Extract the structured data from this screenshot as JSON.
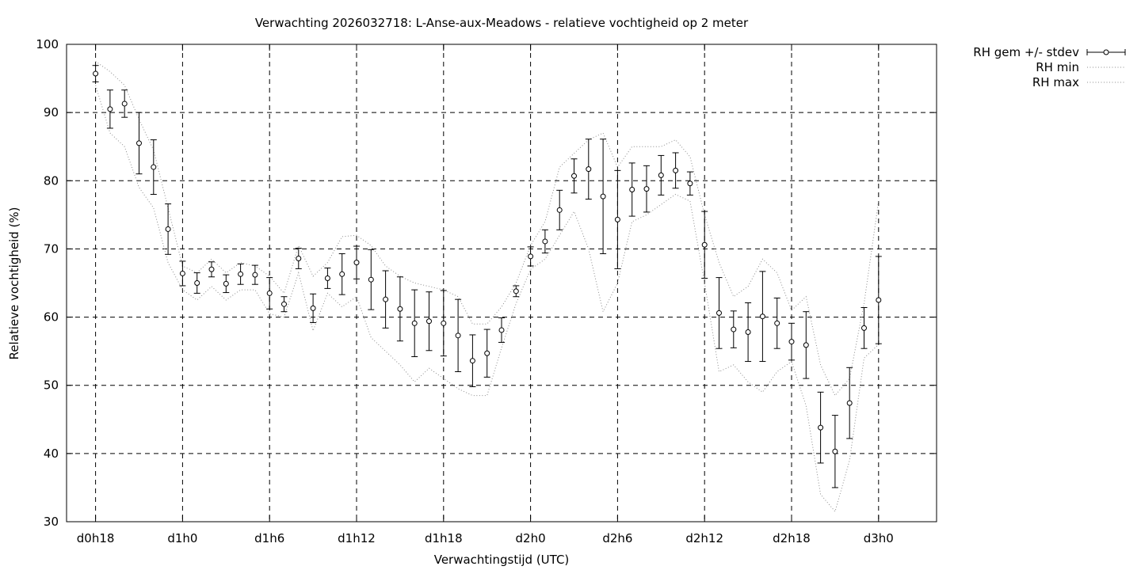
{
  "chart_data": {
    "type": "line",
    "title": "Verwachting 2026032718: L-Anse-aux-Meadows - relatieve vochtigheid op 2 meter",
    "xlabel": "Verwachtingstijd (UTC)",
    "ylabel": "Relatieve vochtigheid (%)",
    "x_unit": "forecast hours since d0h0",
    "xlim": [
      16,
      76
    ],
    "ylim": [
      30,
      100
    ],
    "x_ticks": [
      {
        "x": 18,
        "label": "d0h18"
      },
      {
        "x": 24,
        "label": "d1h0"
      },
      {
        "x": 30,
        "label": "d1h6"
      },
      {
        "x": 36,
        "label": "d1h12"
      },
      {
        "x": 42,
        "label": "d1h18"
      },
      {
        "x": 48,
        "label": "d2h0"
      },
      {
        "x": 54,
        "label": "d2h6"
      },
      {
        "x": 60,
        "label": "d2h12"
      },
      {
        "x": 66,
        "label": "d2h18"
      },
      {
        "x": 72,
        "label": "d3h0"
      }
    ],
    "y_ticks": [
      30,
      40,
      50,
      60,
      70,
      80,
      90,
      100
    ],
    "grid": true,
    "legend_position": "outside-top-right",
    "series": [
      {
        "name": "RH gem +/- stdev",
        "style": "points-errorbars",
        "x": [
          18,
          19,
          20,
          21,
          22,
          23,
          24,
          25,
          26,
          27,
          28,
          29,
          30,
          31,
          32,
          33,
          34,
          35,
          36,
          37,
          38,
          39,
          40,
          41,
          42,
          43,
          44,
          45,
          46,
          47,
          48,
          49,
          50,
          51,
          52,
          53,
          54,
          55,
          56,
          57,
          58,
          59,
          60,
          61,
          62,
          63,
          64,
          65,
          66,
          67,
          68,
          69,
          70,
          71,
          72
        ],
        "values": [
          95.7,
          90.5,
          91.3,
          85.5,
          82.0,
          72.9,
          66.4,
          65.0,
          67.0,
          64.9,
          66.3,
          66.2,
          63.5,
          61.9,
          68.6,
          61.3,
          65.7,
          66.3,
          68.0,
          65.5,
          62.6,
          61.2,
          59.1,
          59.4,
          59.1,
          57.3,
          53.6,
          54.7,
          58.1,
          63.8,
          68.9,
          71.1,
          75.7,
          80.7,
          81.7,
          77.7,
          74.3,
          78.7,
          78.8,
          80.8,
          81.5,
          79.6,
          70.6,
          60.6,
          58.2,
          57.8,
          60.1,
          59.1,
          56.4,
          55.9,
          43.8,
          40.3,
          47.4,
          58.4,
          62.5
        ],
        "lower": [
          94.5,
          87.7,
          89.3,
          81.0,
          78.0,
          69.2,
          64.6,
          63.5,
          65.9,
          63.6,
          64.8,
          64.8,
          61.2,
          60.8,
          67.1,
          59.2,
          64.2,
          63.3,
          65.6,
          61.1,
          58.4,
          56.5,
          54.2,
          55.1,
          54.3,
          52.0,
          49.8,
          51.2,
          56.3,
          63.0,
          67.5,
          69.4,
          72.8,
          78.2,
          77.3,
          69.3,
          67.1,
          74.8,
          75.4,
          77.9,
          78.9,
          77.9,
          65.7,
          55.4,
          55.5,
          53.5,
          53.5,
          55.4,
          53.7,
          51.0,
          38.6,
          35.0,
          42.2,
          55.4,
          56.1
        ],
        "upper": [
          96.9,
          93.3,
          93.3,
          90.0,
          86.0,
          76.6,
          68.2,
          66.5,
          68.1,
          66.2,
          67.8,
          67.6,
          65.8,
          63.0,
          70.1,
          63.4,
          67.2,
          69.3,
          70.4,
          69.9,
          66.8,
          65.9,
          64.0,
          63.7,
          63.9,
          62.6,
          57.4,
          58.2,
          59.9,
          64.6,
          70.3,
          72.8,
          78.6,
          83.2,
          86.1,
          86.1,
          81.5,
          82.6,
          82.2,
          83.7,
          84.1,
          81.3,
          75.5,
          65.8,
          60.9,
          62.1,
          66.7,
          62.8,
          59.1,
          60.8,
          49.0,
          45.6,
          52.6,
          61.4,
          68.9
        ]
      },
      {
        "name": "RH min",
        "style": "dotted",
        "x": [
          18,
          19,
          20,
          21,
          22,
          23,
          24,
          25,
          26,
          27,
          28,
          29,
          30,
          31,
          32,
          33,
          34,
          35,
          36,
          37,
          38,
          39,
          40,
          41,
          42,
          43,
          44,
          45,
          46,
          47,
          48,
          49,
          50,
          51,
          52,
          53,
          54,
          55,
          56,
          57,
          58,
          59,
          60,
          61,
          62,
          63,
          64,
          65,
          66,
          67,
          68,
          69,
          70,
          71,
          72
        ],
        "values": [
          94.0,
          87.0,
          85.0,
          79.0,
          76.0,
          68.0,
          64.0,
          62.5,
          64.5,
          62.5,
          64.0,
          64.0,
          60.5,
          60.0,
          66.5,
          58.0,
          63.5,
          61.5,
          63.0,
          57.0,
          55.0,
          53.0,
          50.5,
          52.5,
          51.0,
          49.5,
          48.5,
          48.5,
          55.5,
          62.0,
          67.0,
          68.5,
          72.0,
          75.5,
          70.0,
          60.8,
          65.0,
          74.0,
          75.0,
          76.5,
          78.0,
          77.0,
          65.0,
          52.0,
          53.0,
          50.5,
          49.0,
          52.0,
          53.5,
          47.0,
          34.0,
          31.5,
          39.0,
          54.0,
          56.0
        ]
      },
      {
        "name": "RH max",
        "style": "dotted",
        "x": [
          18,
          19,
          20,
          21,
          22,
          23,
          24,
          25,
          26,
          27,
          28,
          29,
          30,
          31,
          32,
          33,
          34,
          35,
          36,
          37,
          38,
          39,
          40,
          41,
          42,
          43,
          44,
          45,
          46,
          47,
          48,
          49,
          50,
          51,
          52,
          53,
          54,
          55,
          56,
          57,
          58,
          59,
          60,
          61,
          62,
          63,
          64,
          65,
          66,
          67,
          68,
          69,
          70,
          71,
          72
        ],
        "values": [
          97.5,
          96.0,
          94.0,
          89.0,
          84.5,
          76.0,
          67.5,
          66.5,
          68.5,
          66.5,
          68.0,
          67.5,
          66.0,
          63.5,
          70.5,
          66.0,
          68.0,
          71.8,
          72.0,
          70.5,
          67.5,
          66.0,
          65.0,
          64.5,
          64.0,
          63.0,
          59.0,
          59.0,
          61.5,
          65.0,
          70.5,
          74.0,
          82.0,
          84.0,
          86.0,
          87.0,
          82.0,
          85.0,
          85.0,
          85.0,
          86.0,
          83.5,
          75.0,
          68.0,
          63.0,
          64.5,
          68.5,
          66.5,
          61.0,
          63.0,
          53.0,
          48.5,
          51.0,
          62.0,
          77.0
        ]
      }
    ]
  }
}
